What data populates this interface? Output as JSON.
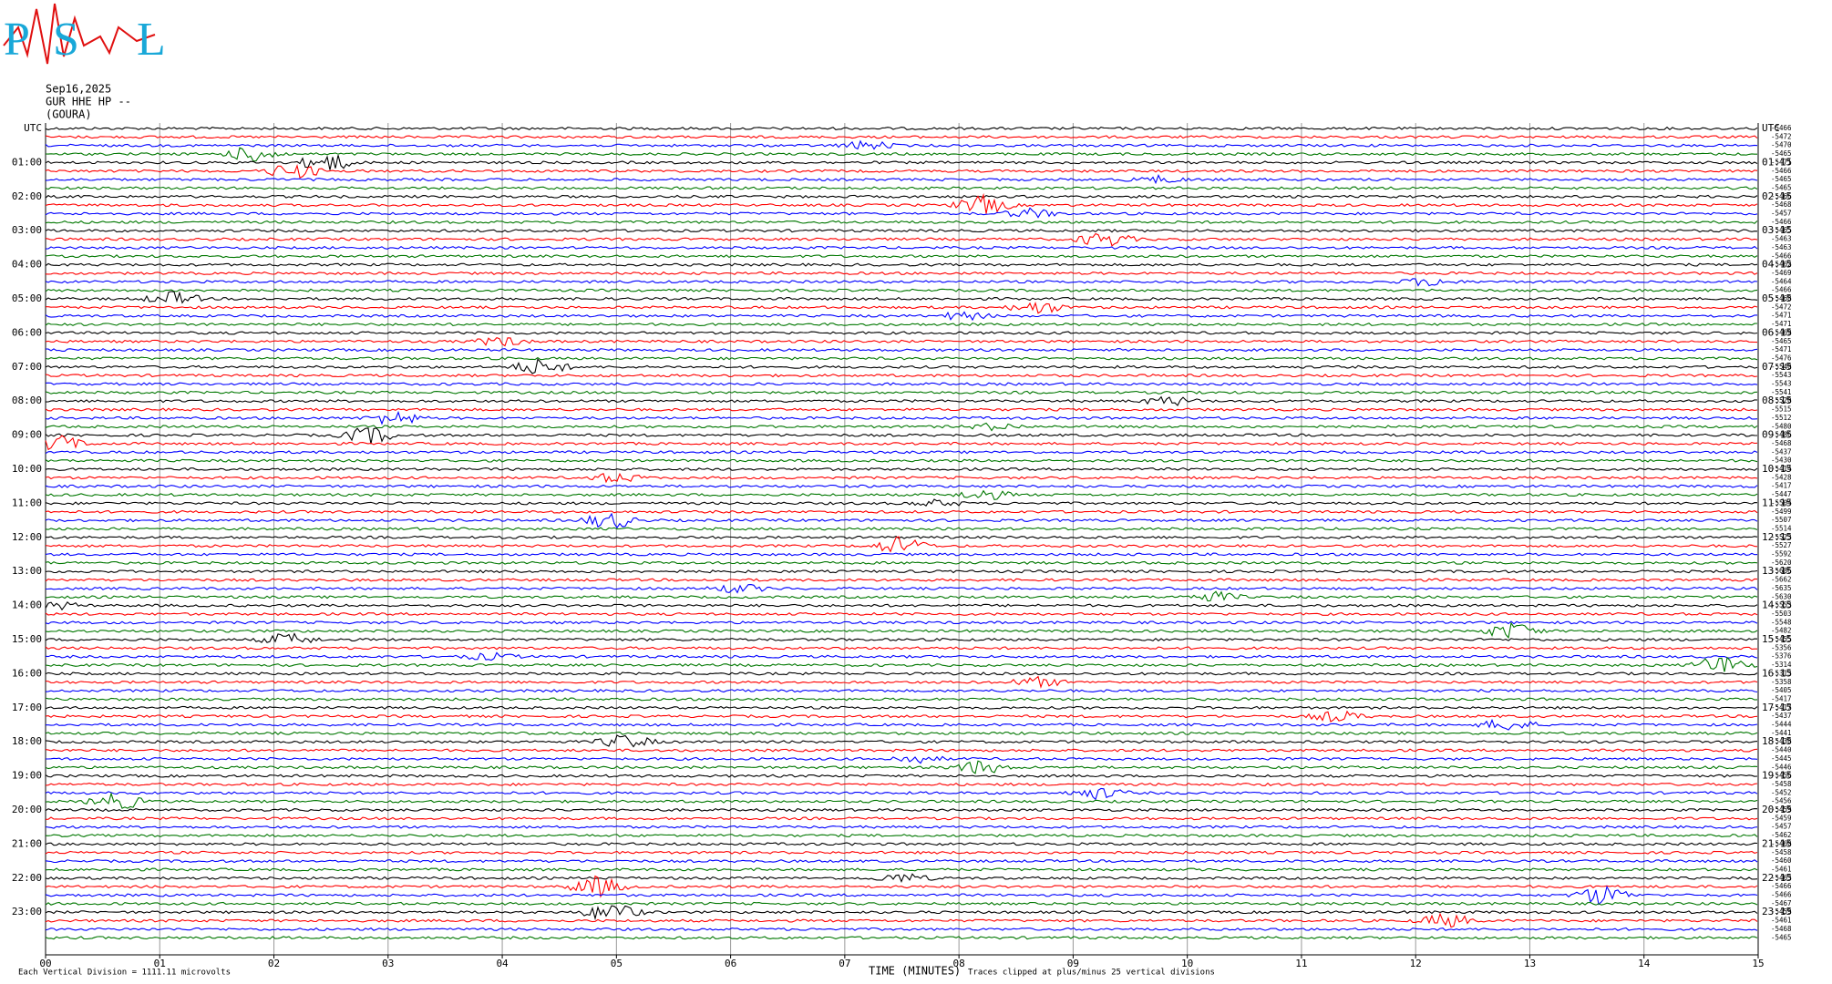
{
  "chart_data": {
    "type": "helicorder",
    "logo": {
      "letters": [
        "P",
        "S",
        "L"
      ]
    },
    "date": "Sep16,2025",
    "station": "GUR HHE HP --",
    "location": "(GOURA)",
    "left_labels": [
      "UTC",
      "01:00",
      "02:00",
      "03:00",
      "04:00",
      "05:00",
      "06:00",
      "07:00",
      "08:00",
      "09:00",
      "10:00",
      "11:00",
      "12:00",
      "13:00",
      "14:00",
      "15:00",
      "16:00",
      "17:00",
      "18:00",
      "19:00",
      "20:00",
      "21:00",
      "22:00",
      "23:00"
    ],
    "right_labels": [
      "UTC",
      "01:15",
      "02:15",
      "03:15",
      "04:15",
      "05:15",
      "06:15",
      "07:15",
      "08:15",
      "09:15",
      "10:15",
      "11:15",
      "12:15",
      "13:15",
      "14:15",
      "15:15",
      "16:15",
      "17:15",
      "18:15",
      "19:15",
      "20:15",
      "21:15",
      "22:15",
      "23:15"
    ],
    "trace_colors": [
      "#000000",
      "#ff0000",
      "#0000ff",
      "#007700"
    ],
    "offsets": [
      -5466,
      -5472,
      -5470,
      -5465,
      -5471,
      -5466,
      -5465,
      -5465,
      -5466,
      -5468,
      -5457,
      -5466,
      -5465,
      -5463,
      -5463,
      -5466,
      -5462,
      -5469,
      -5464,
      -5466,
      -5468,
      -5472,
      -5471,
      -5471,
      -5469,
      -5465,
      -5471,
      -5476,
      -5540,
      -5543,
      -5543,
      -5541,
      -5520,
      -5515,
      -5512,
      -5480,
      -5486,
      -5468,
      -5437,
      -5430,
      -5414,
      -5428,
      -5417,
      -5447,
      -5504,
      -5499,
      -5507,
      -5514,
      -5523,
      -5527,
      -5592,
      -5620,
      -5686,
      -5662,
      -5635,
      -5630,
      -5553,
      -5503,
      -5548,
      -5482,
      -5455,
      -5356,
      -5376,
      -5314,
      -5313,
      -5358,
      -5405,
      -5417,
      -5417,
      -5437,
      -5444,
      -5441,
      -5438,
      -5440,
      -5445,
      -5446,
      -5456,
      -5458,
      -5452,
      -5456,
      -5459,
      -5459,
      -5457,
      -5462,
      -5460,
      -5458,
      -5460,
      -5461,
      -5463,
      -5466,
      -5466,
      -5467,
      -5459,
      -5461,
      -5468,
      -5465
    ],
    "xlim": [
      0,
      15
    ],
    "xticks": [
      {
        "value": 0,
        "label": "00"
      },
      {
        "value": 1,
        "label": "01"
      },
      {
        "value": 2,
        "label": "02"
      },
      {
        "value": 3,
        "label": "03"
      },
      {
        "value": 4,
        "label": "04"
      },
      {
        "value": 5,
        "label": "05"
      },
      {
        "value": 6,
        "label": "06"
      },
      {
        "value": 7,
        "label": "07"
      },
      {
        "value": 8,
        "label": "08"
      },
      {
        "value": 9,
        "label": "09"
      },
      10,
      11,
      12,
      13,
      14,
      15
    ],
    "xlabel": "TIME (MINUTES)",
    "scale_note": "Each Vertical Division = 1111.11 microvolts",
    "clip_note": "Traces clipped at plus/minus 25 vertical divisions",
    "grid": true
  }
}
